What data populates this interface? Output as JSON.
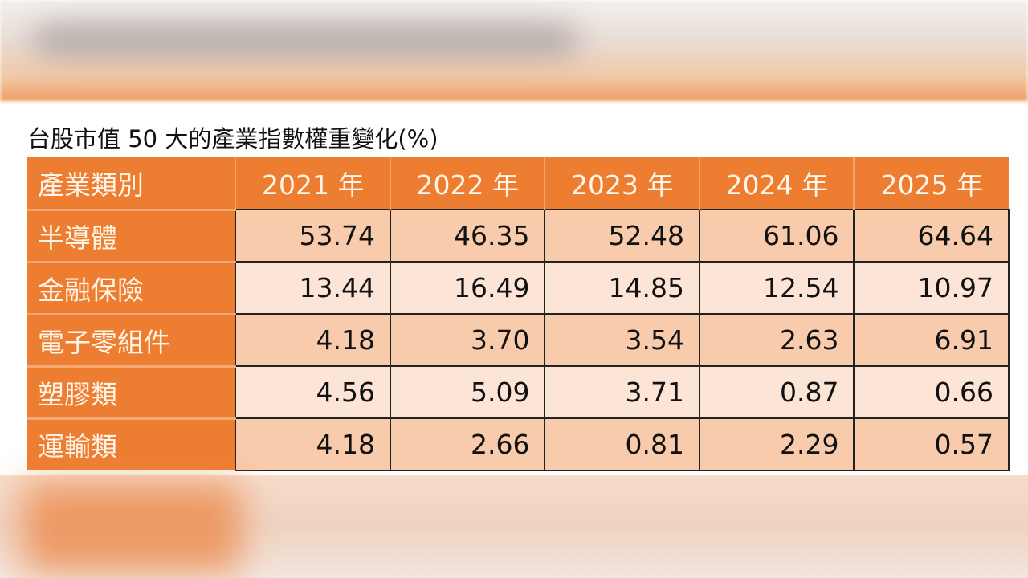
{
  "title": "台股市值 50 大的產業指數權重變化(%)",
  "colors": {
    "header": "#ED7D31",
    "row_dark": "#F8CBAD",
    "row_light": "#FCE4D6"
  },
  "chart_data": {
    "type": "table",
    "title": "台股市值 50 大的產業指數權重變化(%)",
    "columns": [
      "產業類別",
      "2021 年",
      "2022 年",
      "2023 年",
      "2024 年",
      "2025 年"
    ],
    "rows": [
      {
        "category": "半導體",
        "values": [
          "53.74",
          "46.35",
          "52.48",
          "61.06",
          "64.64"
        ]
      },
      {
        "category": "金融保險",
        "values": [
          "13.44",
          "16.49",
          "14.85",
          "12.54",
          "10.97"
        ]
      },
      {
        "category": "電子零組件",
        "values": [
          "4.18",
          "3.70",
          "3.54",
          "2.63",
          "6.91"
        ]
      },
      {
        "category": "塑膠類",
        "values": [
          "4.56",
          "5.09",
          "3.71",
          "0.87",
          "0.66"
        ]
      },
      {
        "category": "運輸類",
        "values": [
          "4.18",
          "2.66",
          "0.81",
          "2.29",
          "0.57"
        ]
      }
    ]
  }
}
